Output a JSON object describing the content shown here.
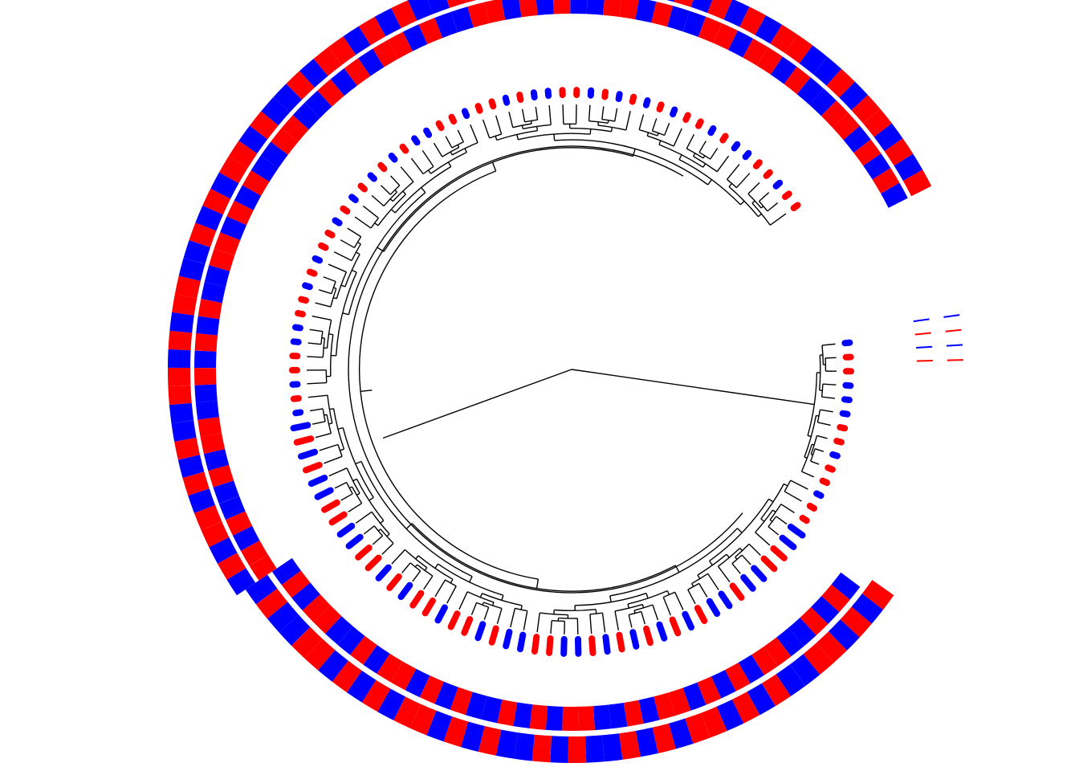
{
  "colors": {
    "background": "#ffffff",
    "branch": "#000000",
    "group_a": "#ff0000",
    "group_b": "#0000ff"
  },
  "tree": {
    "layout": "circular",
    "leaf_count": 113,
    "leaf_pattern": [
      "b",
      "r",
      "r",
      "b",
      "b",
      "b",
      "r",
      "r",
      "b",
      "r",
      "r",
      "b",
      "r",
      "r",
      "b",
      "b",
      "r",
      "r",
      "b",
      "b",
      "r",
      "b",
      "b",
      "r",
      "b",
      "r",
      "b",
      "r",
      "b",
      "r",
      "b",
      "r",
      "b",
      "b",
      "r",
      "r",
      "b",
      "b",
      "r",
      "b",
      "r",
      "r",
      "b",
      "r",
      "r",
      "b",
      "r",
      "b",
      "r",
      "r",
      "b",
      "b",
      "r",
      "r",
      "b",
      "b",
      "r",
      "b",
      "r",
      "b",
      "b",
      "r",
      "b",
      "r",
      "r",
      "b",
      "b",
      "r",
      "r",
      "b",
      "r",
      "b",
      "r",
      "r",
      "b",
      "r",
      "b",
      "r",
      "b",
      "r",
      "b",
      "r",
      "b",
      "b",
      "r",
      "r",
      "b",
      "r",
      "r",
      "b",
      "r",
      "b",
      "b",
      "r",
      "r",
      "b",
      "r",
      "b",
      "r",
      "b",
      "r",
      "b",
      "r",
      "r",
      "b",
      "r",
      "b",
      "b",
      "r",
      "r",
      "b",
      "r",
      "r"
    ]
  },
  "rings": [
    {
      "name": "inner-heatmap-ring",
      "cells": [
        "b",
        "r",
        "b",
        "r",
        "b",
        "b",
        "r",
        "r",
        "b",
        "r",
        "b",
        "r",
        "b",
        "r",
        "r",
        "b",
        "r",
        "b",
        "b",
        "r",
        "r",
        "b",
        "r",
        "b",
        "r",
        "b",
        "b",
        "r",
        "b",
        "r",
        "b",
        "r",
        "r",
        "b",
        "r",
        "b",
        "b",
        "r",
        "r",
        "b",
        "r",
        "b",
        "r",
        "r",
        "b",
        "r",
        "b",
        "b",
        "r",
        "b",
        "r",
        "r",
        "b",
        "b",
        "r",
        "b",
        "r",
        "b",
        "r",
        "b",
        "b",
        "r",
        "r",
        "b",
        "r",
        "b",
        "r",
        "b",
        "b",
        "r",
        "r",
        "b",
        "b",
        "r",
        "b",
        "r",
        "b",
        "r",
        "r",
        "b",
        "r",
        "b",
        "b",
        "r",
        "r",
        "b",
        "r",
        "b",
        "r",
        "b",
        "b",
        "r",
        "r",
        "b",
        "r",
        "b",
        "b",
        "r",
        "r",
        "b",
        "r",
        "r",
        "b",
        "r",
        "b",
        "b",
        "r",
        "r",
        "b",
        "r",
        "b",
        "r",
        "b"
      ]
    },
    {
      "name": "outer-heatmap-ring",
      "cells": [
        "r",
        "b",
        "r",
        "b",
        "r",
        "r",
        "b",
        "b",
        "r",
        "b",
        "r",
        "b",
        "r",
        "r",
        "b",
        "r",
        "b",
        "r",
        "b",
        "b",
        "r",
        "b",
        "r",
        "b",
        "b",
        "r",
        "b",
        "r",
        "b",
        "r",
        "r",
        "b",
        "r",
        "b",
        "r",
        "b",
        "r",
        "r",
        "b",
        "b",
        "r",
        "b",
        "b",
        "r",
        "b",
        "r",
        "r",
        "b",
        "r",
        "b",
        "r",
        "b",
        "b",
        "r",
        "r",
        "b",
        "r",
        "b",
        "r",
        "r",
        "b",
        "b",
        "r",
        "b",
        "r",
        "b",
        "r",
        "r",
        "b",
        "r",
        "b",
        "b",
        "r",
        "b",
        "r",
        "r",
        "b",
        "r",
        "b",
        "r",
        "b",
        "b",
        "r",
        "r",
        "b",
        "r",
        "b",
        "r",
        "b",
        "b",
        "r",
        "b",
        "r",
        "r",
        "b",
        "r",
        "b",
        "r",
        "b",
        "r",
        "b",
        "r",
        "r",
        "b",
        "b",
        "r",
        "b",
        "r",
        "r",
        "b",
        "r",
        "b",
        "r"
      ]
    }
  ]
}
